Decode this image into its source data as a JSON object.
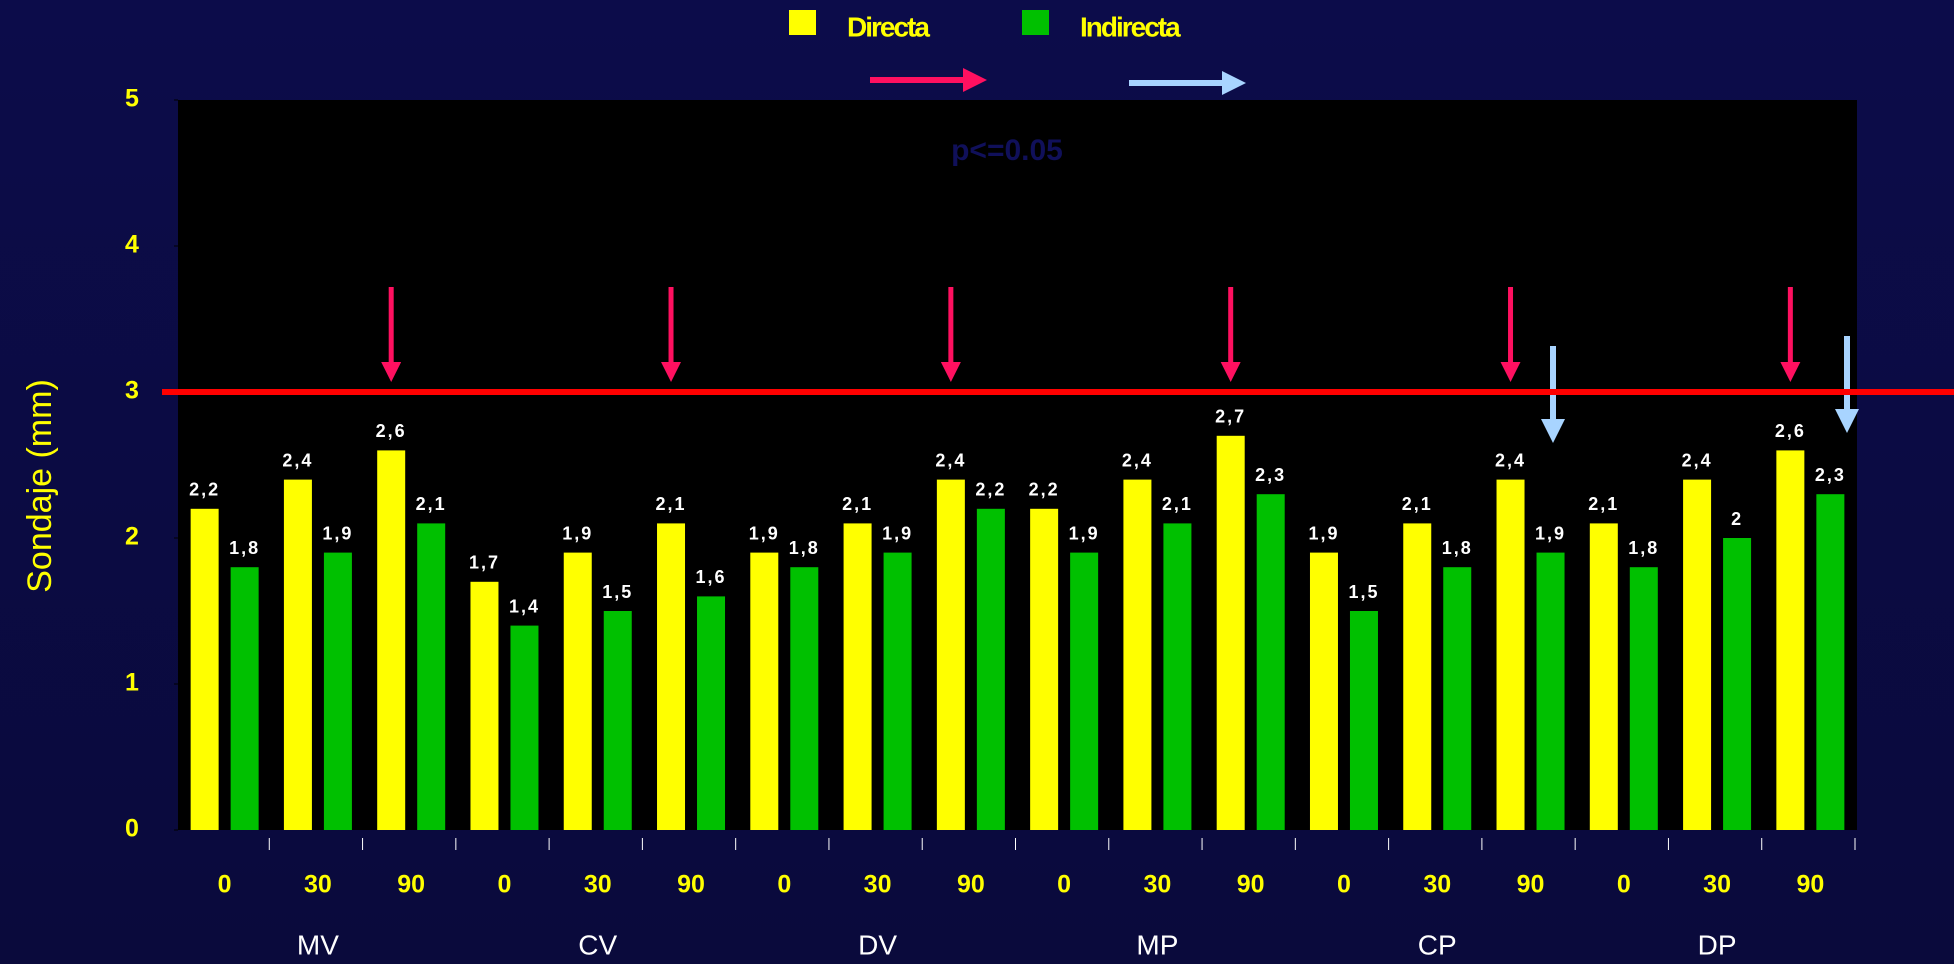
{
  "chart_data": {
    "type": "bar",
    "groups": [
      "MV",
      "CV",
      "DV",
      "MP",
      "CP",
      "DP"
    ],
    "categories": [
      "0",
      "30",
      "90",
      "0",
      "30",
      "90",
      "0",
      "30",
      "90",
      "0",
      "30",
      "90",
      "0",
      "30",
      "90",
      "0",
      "30",
      "90"
    ],
    "series": [
      {
        "name": "Directa",
        "color": "#ffff00",
        "values": [
          2.2,
          2.4,
          2.6,
          1.7,
          1.9,
          2.1,
          1.9,
          2.1,
          2.4,
          2.2,
          2.4,
          2.7,
          1.9,
          2.1,
          2.4,
          2.1,
          2.4,
          2.6
        ],
        "value_labels": [
          "2,2",
          "2,4",
          "2,6",
          "1,7",
          "1,9",
          "2,1",
          "1,9",
          "2,1",
          "2,4",
          "2,2",
          "2,4",
          "2,7",
          "1,9",
          "2,1",
          "2,4",
          "2,1",
          "2,4",
          "2,6"
        ]
      },
      {
        "name": "Indirecta",
        "color": "#00c000",
        "values": [
          1.8,
          1.9,
          2.1,
          1.4,
          1.5,
          1.6,
          1.8,
          1.9,
          2.2,
          1.9,
          2.1,
          2.3,
          1.5,
          1.8,
          1.9,
          1.8,
          2,
          2.3
        ],
        "value_labels": [
          "1,8",
          "1,9",
          "2,1",
          "1,4",
          "1,5",
          "1,6",
          "1,8",
          "1,9",
          "2,2",
          "1,9",
          "2,1",
          "2,3",
          "1,5",
          "1,8",
          "1,9",
          "1,8",
          "2",
          "2,3"
        ]
      }
    ],
    "ylabel": "Sondaje (mm)",
    "annotation": "p<=0.05",
    "ylim": [
      0,
      5
    ],
    "yticks": [
      0,
      1,
      2,
      3,
      4,
      5
    ],
    "reference_line": {
      "value": 3,
      "color": "#ff0000"
    }
  }
}
